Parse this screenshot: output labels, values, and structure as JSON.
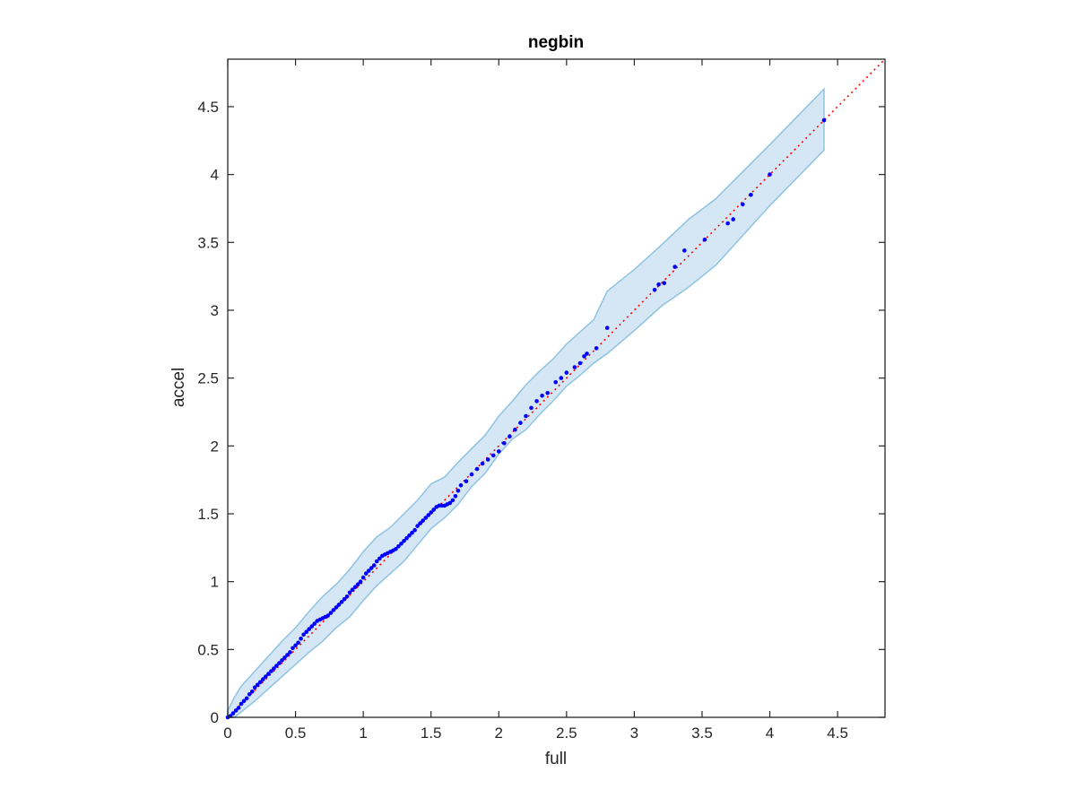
{
  "chart_data": {
    "type": "scatter",
    "title": "negbin",
    "xlabel": "full",
    "ylabel": "accel",
    "xlim": [
      0,
      4.85
    ],
    "ylim": [
      0,
      4.85
    ],
    "xticks": [
      0,
      0.5,
      1,
      1.5,
      2,
      2.5,
      3,
      3.5,
      4,
      4.5
    ],
    "yticks": [
      0,
      0.5,
      1,
      1.5,
      2,
      2.5,
      3,
      3.5,
      4,
      4.5
    ],
    "xtick_labels": [
      "0",
      "0.5",
      "1",
      "1.5",
      "2",
      "2.5",
      "3",
      "3.5",
      "4",
      "4.5"
    ],
    "ytick_labels": [
      "0",
      "0.5",
      "1",
      "1.5",
      "2",
      "2.5",
      "3",
      "3.5",
      "4",
      "4.5"
    ],
    "grid": false,
    "colors": {
      "points": "#0000ff",
      "reference_line": "#ff0000",
      "band_fill": "#d5e6f4",
      "band_edge": "#8ec3e2",
      "axes": "#262626"
    },
    "reference_line": {
      "style": "dotted",
      "x": [
        0,
        4.85
      ],
      "y": [
        0,
        4.85
      ]
    },
    "confidence_band": {
      "x": [
        0.0,
        0.05,
        0.1,
        0.2,
        0.3,
        0.4,
        0.5,
        0.6,
        0.7,
        0.8,
        0.9,
        1.0,
        1.1,
        1.2,
        1.3,
        1.4,
        1.5,
        1.6,
        1.7,
        1.8,
        1.9,
        2.0,
        2.1,
        2.2,
        2.3,
        2.4,
        2.5,
        2.6,
        2.7,
        2.8,
        3.0,
        3.2,
        3.4,
        3.6,
        4.0,
        4.4
      ],
      "lower": [
        0.0,
        0.0,
        0.04,
        0.12,
        0.21,
        0.3,
        0.39,
        0.48,
        0.56,
        0.66,
        0.74,
        0.86,
        0.97,
        1.06,
        1.15,
        1.27,
        1.39,
        1.47,
        1.57,
        1.7,
        1.8,
        1.94,
        2.05,
        2.12,
        2.23,
        2.33,
        2.44,
        2.52,
        2.61,
        2.68,
        2.85,
        3.03,
        3.17,
        3.33,
        3.77,
        4.18
      ],
      "upper": [
        0.05,
        0.15,
        0.23,
        0.34,
        0.45,
        0.56,
        0.66,
        0.78,
        0.89,
        0.98,
        1.09,
        1.22,
        1.33,
        1.4,
        1.5,
        1.6,
        1.72,
        1.77,
        1.88,
        1.98,
        2.08,
        2.22,
        2.33,
        2.45,
        2.55,
        2.64,
        2.75,
        2.84,
        2.93,
        3.14,
        3.3,
        3.48,
        3.67,
        3.82,
        4.22,
        4.63
      ]
    },
    "points": {
      "x": [
        0.0,
        0.02,
        0.04,
        0.06,
        0.08,
        0.1,
        0.12,
        0.14,
        0.16,
        0.18,
        0.2,
        0.22,
        0.24,
        0.26,
        0.28,
        0.3,
        0.32,
        0.34,
        0.36,
        0.38,
        0.4,
        0.42,
        0.44,
        0.46,
        0.48,
        0.5,
        0.52,
        0.54,
        0.56,
        0.58,
        0.6,
        0.62,
        0.64,
        0.66,
        0.68,
        0.7,
        0.72,
        0.74,
        0.76,
        0.78,
        0.8,
        0.82,
        0.84,
        0.86,
        0.88,
        0.9,
        0.92,
        0.94,
        0.96,
        0.98,
        1.0,
        1.02,
        1.04,
        1.06,
        1.08,
        1.1,
        1.12,
        1.14,
        1.16,
        1.18,
        1.2,
        1.22,
        1.24,
        1.26,
        1.28,
        1.3,
        1.32,
        1.34,
        1.36,
        1.38,
        1.4,
        1.42,
        1.44,
        1.46,
        1.48,
        1.5,
        1.52,
        1.54,
        1.56,
        1.58,
        1.6,
        1.62,
        1.64,
        1.66,
        1.68,
        1.7,
        1.72,
        1.76,
        1.8,
        1.84,
        1.88,
        1.92,
        1.96,
        2.0,
        2.04,
        2.08,
        2.12,
        2.16,
        2.2,
        2.24,
        2.28,
        2.32,
        2.36,
        2.42,
        2.46,
        2.5,
        2.56,
        2.6,
        2.63,
        2.65,
        2.72,
        2.8,
        3.15,
        3.18,
        3.22,
        3.3,
        3.37,
        3.52,
        3.69,
        3.73,
        3.8,
        3.86,
        4.0,
        4.4
      ],
      "y": [
        0.0,
        0.01,
        0.03,
        0.05,
        0.07,
        0.1,
        0.12,
        0.14,
        0.17,
        0.19,
        0.22,
        0.24,
        0.26,
        0.28,
        0.3,
        0.32,
        0.34,
        0.36,
        0.38,
        0.4,
        0.42,
        0.44,
        0.46,
        0.48,
        0.51,
        0.53,
        0.55,
        0.58,
        0.61,
        0.63,
        0.65,
        0.67,
        0.69,
        0.71,
        0.72,
        0.73,
        0.74,
        0.75,
        0.77,
        0.79,
        0.81,
        0.83,
        0.85,
        0.87,
        0.89,
        0.92,
        0.94,
        0.96,
        0.98,
        1.0,
        1.03,
        1.06,
        1.08,
        1.1,
        1.12,
        1.15,
        1.17,
        1.19,
        1.2,
        1.21,
        1.22,
        1.23,
        1.24,
        1.26,
        1.28,
        1.3,
        1.32,
        1.34,
        1.36,
        1.38,
        1.41,
        1.43,
        1.45,
        1.47,
        1.49,
        1.51,
        1.53,
        1.55,
        1.56,
        1.56,
        1.56,
        1.57,
        1.58,
        1.6,
        1.63,
        1.67,
        1.71,
        1.74,
        1.79,
        1.83,
        1.87,
        1.9,
        1.93,
        1.96,
        2.02,
        2.07,
        2.12,
        2.17,
        2.22,
        2.28,
        2.33,
        2.37,
        2.39,
        2.47,
        2.5,
        2.54,
        2.58,
        2.61,
        2.66,
        2.68,
        2.72,
        2.87,
        3.15,
        3.19,
        3.2,
        3.32,
        3.44,
        3.52,
        3.64,
        3.67,
        3.78,
        3.85,
        4.0,
        4.4
      ]
    }
  }
}
